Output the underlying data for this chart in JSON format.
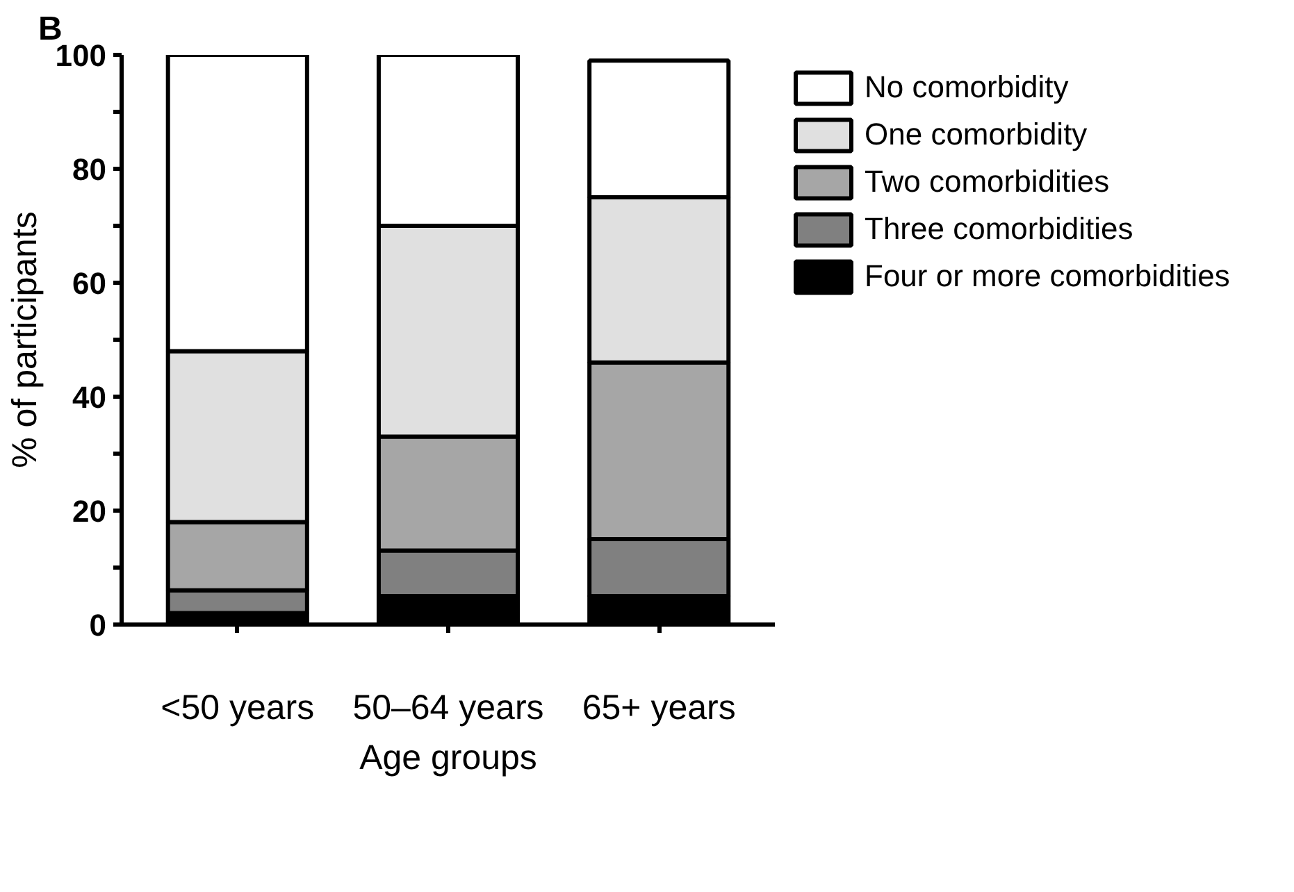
{
  "chart_data": {
    "type": "bar",
    "stacked": true,
    "ylabel": "% of participants",
    "xlabel": "Age groups",
    "annotations": [
      "B"
    ],
    "categories": [
      "<50 years",
      "50–64 years",
      "65+ years"
    ],
    "series": [
      {
        "name": "Four or more comorbidities",
        "color": "#000000",
        "values": [
          2,
          5,
          5
        ]
      },
      {
        "name": "Three comorbidities",
        "color": "#808080",
        "values": [
          4,
          8,
          10
        ]
      },
      {
        "name": "Two comorbidities",
        "color": "#a6a6a6",
        "values": [
          12,
          20,
          31
        ]
      },
      {
        "name": "One comorbidity",
        "color": "#e0e0e0",
        "values": [
          30,
          37,
          29
        ]
      },
      {
        "name": "No comorbidity",
        "color": "#ffffff",
        "values": [
          52,
          30,
          24
        ]
      }
    ],
    "ylim": [
      0,
      100
    ],
    "yticks": [
      0,
      {
        "value": 10,
        "label": null
      },
      20,
      {
        "value": 30,
        "label": null
      },
      40,
      {
        "value": 50,
        "label": null
      },
      60,
      {
        "value": 70,
        "label": null
      },
      80,
      {
        "value": 90,
        "label": null
      },
      100
    ],
    "grid": false,
    "legend": "right"
  }
}
